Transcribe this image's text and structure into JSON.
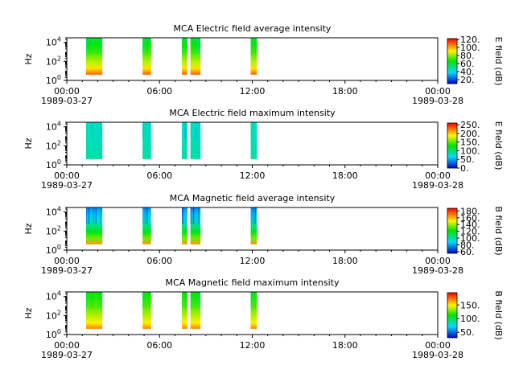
{
  "figure": {
    "background": "#ffffff"
  },
  "chart_data": [
    {
      "type": "heatmap",
      "title": "MCA  Electric field average intensity",
      "ylabel": "Hz",
      "colorbar_label": "E field (dB)",
      "colorbar_ticks": [
        "20.",
        "40.",
        "60.",
        "80.",
        "100.",
        "120."
      ],
      "colorbar_range": [
        10,
        122
      ],
      "yscale": "log",
      "ylim": [
        1,
        30000
      ],
      "y_ticks": [
        {
          "base": "10",
          "exp": "0"
        },
        {
          "base": "10",
          "exp": "2"
        },
        {
          "base": "10",
          "exp": "4"
        }
      ],
      "x_ticks": [
        {
          "time": "00:00",
          "date": "1989-03-27"
        },
        {
          "time": "06:00",
          "date": ""
        },
        {
          "time": "12:00",
          "date": ""
        },
        {
          "time": "18:00",
          "date": ""
        },
        {
          "time": "00:00",
          "date": "1989-03-28"
        }
      ],
      "xlim_hours": [
        0,
        24
      ],
      "data_segments_hours": [
        [
          1.25,
          2.3
        ],
        [
          4.9,
          5.45
        ],
        [
          7.45,
          7.8
        ],
        [
          8.0,
          8.65
        ],
        [
          11.9,
          12.3
        ]
      ],
      "freq_range_hz": [
        4,
        30000
      ],
      "low_freq_value": 110,
      "high_freq_value": 60
    },
    {
      "type": "heatmap",
      "title": "MCA  Electric field maximum intensity",
      "ylabel": "Hz",
      "colorbar_label": "E field (dB)",
      "colorbar_ticks": [
        "0.",
        "50.",
        "100.",
        "150.",
        "200.",
        "250."
      ],
      "colorbar_range": [
        0,
        260
      ],
      "yscale": "log",
      "ylim": [
        1,
        30000
      ],
      "y_ticks": [
        {
          "base": "10",
          "exp": "0"
        },
        {
          "base": "10",
          "exp": "2"
        },
        {
          "base": "10",
          "exp": "4"
        }
      ],
      "x_ticks": [
        {
          "time": "00:00",
          "date": "1989-03-27"
        },
        {
          "time": "06:00",
          "date": ""
        },
        {
          "time": "12:00",
          "date": ""
        },
        {
          "time": "18:00",
          "date": ""
        },
        {
          "time": "00:00",
          "date": "1989-03-28"
        }
      ],
      "xlim_hours": [
        0,
        24
      ],
      "data_segments_hours": [
        [
          1.25,
          2.3
        ],
        [
          4.9,
          5.45
        ],
        [
          7.45,
          7.8
        ],
        [
          8.0,
          8.65
        ],
        [
          11.9,
          12.3
        ]
      ],
      "freq_range_hz": [
        4,
        30000
      ],
      "low_freq_value": 90,
      "high_freq_value": 80
    },
    {
      "type": "heatmap",
      "title": "MCA  Magnetic field average intensity",
      "ylabel": "Hz",
      "colorbar_label": "B field (dB)",
      "colorbar_ticks": [
        "60.",
        "80.",
        "100.",
        "120.",
        "140.",
        "160.",
        "180."
      ],
      "colorbar_range": [
        55,
        188
      ],
      "yscale": "log",
      "ylim": [
        1,
        30000
      ],
      "y_ticks": [
        {
          "base": "10",
          "exp": "0"
        },
        {
          "base": "10",
          "exp": "2"
        },
        {
          "base": "10",
          "exp": "4"
        }
      ],
      "x_ticks": [
        {
          "time": "00:00",
          "date": "1989-03-27"
        },
        {
          "time": "06:00",
          "date": ""
        },
        {
          "time": "12:00",
          "date": ""
        },
        {
          "time": "18:00",
          "date": ""
        },
        {
          "time": "00:00",
          "date": "1989-03-28"
        }
      ],
      "xlim_hours": [
        0,
        24
      ],
      "data_segments_hours": [
        [
          1.25,
          2.3
        ],
        [
          4.9,
          5.45
        ],
        [
          7.45,
          7.8
        ],
        [
          8.0,
          8.65
        ],
        [
          11.9,
          12.3
        ]
      ],
      "freq_range_hz": [
        4,
        30000
      ],
      "low_freq_value": 165,
      "high_freq_value": 75
    },
    {
      "type": "heatmap",
      "title": "MCA  Magnetic field maximum intensity",
      "ylabel": "Hz",
      "colorbar_label": "B field (dB)",
      "colorbar_ticks": [
        "50.",
        "100.",
        "150."
      ],
      "colorbar_range": [
        30,
        195
      ],
      "yscale": "log",
      "ylim": [
        1,
        30000
      ],
      "y_ticks": [
        {
          "base": "10",
          "exp": "0"
        },
        {
          "base": "10",
          "exp": "2"
        },
        {
          "base": "10",
          "exp": "4"
        }
      ],
      "x_ticks": [
        {
          "time": "00:00",
          "date": "1989-03-27"
        },
        {
          "time": "06:00",
          "date": ""
        },
        {
          "time": "12:00",
          "date": ""
        },
        {
          "time": "18:00",
          "date": ""
        },
        {
          "time": "00:00",
          "date": "1989-03-28"
        }
      ],
      "xlim_hours": [
        0,
        24
      ],
      "data_segments_hours": [
        [
          1.25,
          2.3
        ],
        [
          4.9,
          5.45
        ],
        [
          7.45,
          7.8
        ],
        [
          8.0,
          8.65
        ],
        [
          11.9,
          12.3
        ]
      ],
      "freq_range_hz": [
        4,
        30000
      ],
      "low_freq_value": 170,
      "high_freq_value": 110
    }
  ]
}
